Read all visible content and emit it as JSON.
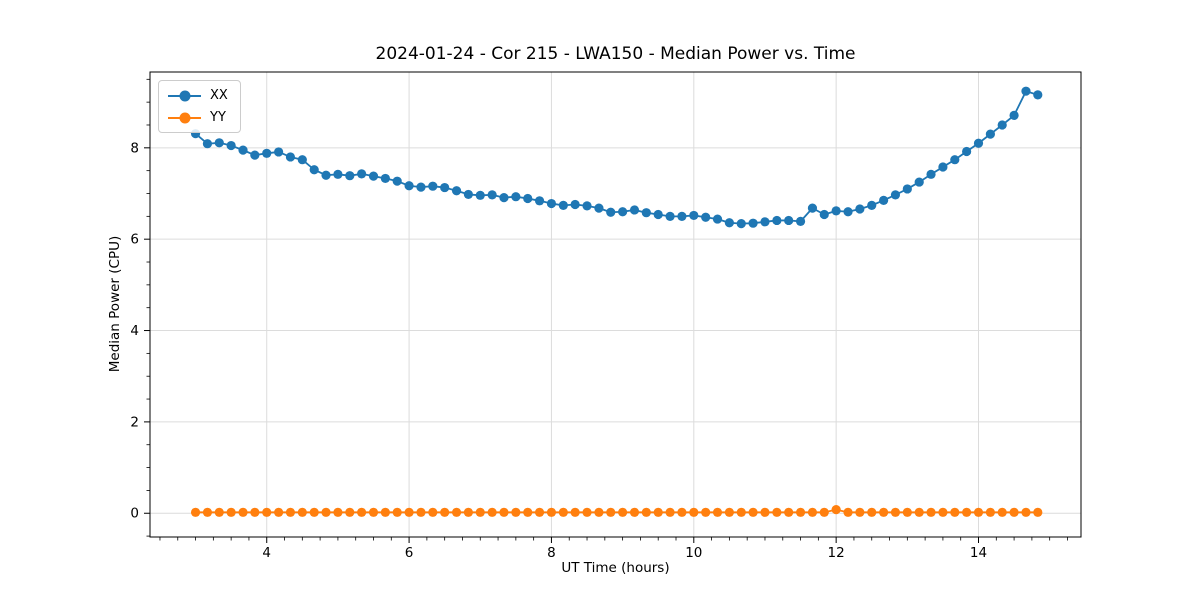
{
  "page_title": "2024-01-24 - Cor 215 - LWA150 - Median Power vs. Time",
  "style": {
    "background": "#ffffff",
    "grid_color": "#dcdcdc",
    "spine_color": "#000000",
    "text_color": "#000000",
    "series_blue": "#1f77b4",
    "series_orange": "#ff7f0e"
  },
  "chart_data": {
    "type": "line",
    "title": "2024-01-24 - Cor 215 - LWA150 - Median Power vs. Time",
    "xlabel": "UT Time (hours)",
    "ylabel": "Median Power (CPU)",
    "xlim": [
      2.36,
      15.44
    ],
    "ylim": [
      -0.52,
      9.66
    ],
    "x_major_ticks": [
      4,
      6,
      8,
      10,
      12,
      14
    ],
    "x_minor_step": 0.25,
    "y_major_ticks": [
      0,
      2,
      4,
      6,
      8
    ],
    "y_minor_step": 0.5,
    "grid": "major-both-axes",
    "legend_position": "upper-left",
    "marker": "circle",
    "x": [
      3.0,
      3.167,
      3.333,
      3.5,
      3.667,
      3.833,
      4.0,
      4.167,
      4.333,
      4.5,
      4.667,
      4.833,
      5.0,
      5.167,
      5.333,
      5.5,
      5.667,
      5.833,
      6.0,
      6.167,
      6.333,
      6.5,
      6.667,
      6.833,
      7.0,
      7.167,
      7.333,
      7.5,
      7.667,
      7.833,
      8.0,
      8.167,
      8.333,
      8.5,
      8.667,
      8.833,
      9.0,
      9.167,
      9.333,
      9.5,
      9.667,
      9.833,
      10.0,
      10.167,
      10.333,
      10.5,
      10.667,
      10.833,
      11.0,
      11.167,
      11.333,
      11.5,
      11.667,
      11.833,
      12.0,
      12.167,
      12.333,
      12.5,
      12.667,
      12.833,
      13.0,
      13.167,
      13.333,
      13.5,
      13.667,
      13.833,
      14.0,
      14.167,
      14.333,
      14.5,
      14.667,
      14.833
    ],
    "series": [
      {
        "name": "XX",
        "color": "#1f77b4",
        "values": [
          8.31,
          8.09,
          8.11,
          8.05,
          7.95,
          7.84,
          7.88,
          7.91,
          7.8,
          7.74,
          7.52,
          7.4,
          7.42,
          7.39,
          7.43,
          7.38,
          7.33,
          7.27,
          7.17,
          7.14,
          7.16,
          7.13,
          7.06,
          6.98,
          6.96,
          6.97,
          6.91,
          6.93,
          6.89,
          6.84,
          6.78,
          6.74,
          6.76,
          6.73,
          6.68,
          6.59,
          6.6,
          6.64,
          6.58,
          6.54,
          6.5,
          6.5,
          6.52,
          6.48,
          6.44,
          6.36,
          6.34,
          6.35,
          6.38,
          6.41,
          6.41,
          6.39,
          6.68,
          6.54,
          6.62,
          6.6,
          6.66,
          6.74,
          6.85,
          6.97,
          7.1,
          7.25,
          7.42,
          7.58,
          7.74,
          7.92,
          8.1,
          8.3,
          8.5,
          8.71,
          9.24,
          9.16
        ]
      },
      {
        "name": "YY",
        "color": "#ff7f0e",
        "values": [
          0.02,
          0.02,
          0.02,
          0.02,
          0.02,
          0.02,
          0.02,
          0.02,
          0.02,
          0.02,
          0.02,
          0.02,
          0.02,
          0.02,
          0.02,
          0.02,
          0.02,
          0.02,
          0.02,
          0.02,
          0.02,
          0.02,
          0.02,
          0.02,
          0.02,
          0.02,
          0.02,
          0.02,
          0.02,
          0.02,
          0.02,
          0.02,
          0.02,
          0.02,
          0.02,
          0.02,
          0.02,
          0.02,
          0.02,
          0.02,
          0.02,
          0.02,
          0.02,
          0.02,
          0.02,
          0.02,
          0.02,
          0.02,
          0.02,
          0.02,
          0.02,
          0.02,
          0.02,
          0.02,
          0.08,
          0.02,
          0.02,
          0.02,
          0.02,
          0.02,
          0.02,
          0.02,
          0.02,
          0.02,
          0.02,
          0.02,
          0.02,
          0.02,
          0.02,
          0.02,
          0.02,
          0.02
        ]
      }
    ]
  }
}
